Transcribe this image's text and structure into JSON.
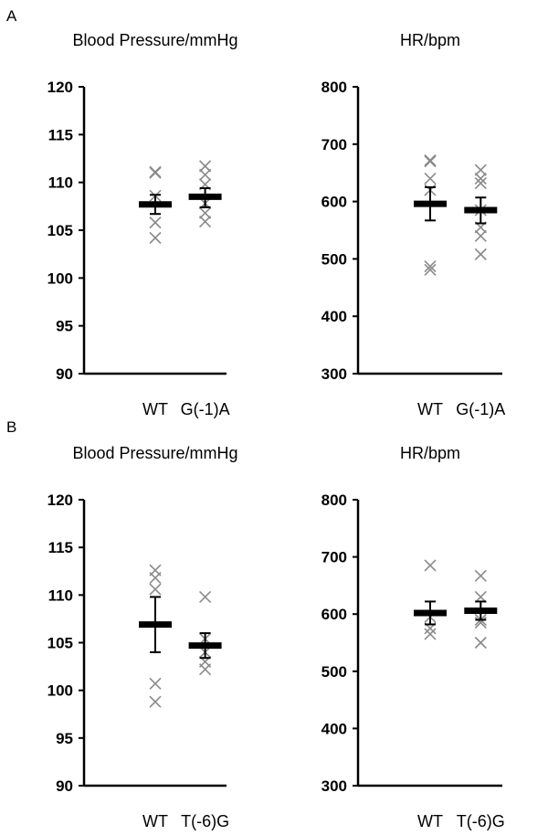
{
  "panels": {
    "a": {
      "label": "A"
    },
    "b": {
      "label": "B"
    }
  },
  "chart_data": [
    {
      "type": "scatter",
      "panel": "A",
      "title": "Blood Pressure/mmHg",
      "categories": [
        "WT",
        "G(-1)A"
      ],
      "ylim": [
        90,
        120
      ],
      "yticks": [
        90,
        95,
        100,
        105,
        110,
        115,
        120
      ],
      "series": [
        {
          "category": "WT",
          "points": [
            111.1,
            111.0,
            108.6,
            105.8,
            104.2
          ],
          "mean": 107.7,
          "error": [
            106.7,
            108.7
          ]
        },
        {
          "category": "G(-1)A",
          "points": [
            111.7,
            110.8,
            109.8,
            107.8,
            106.8,
            105.9
          ],
          "mean": 108.5,
          "error": [
            107.4,
            109.4
          ]
        }
      ]
    },
    {
      "type": "scatter",
      "panel": "A",
      "title": "HR/bpm",
      "categories": [
        "WT",
        "G(-1)A"
      ],
      "ylim": [
        300,
        800
      ],
      "yticks": [
        300,
        400,
        500,
        600,
        700,
        800
      ],
      "series": [
        {
          "category": "WT",
          "points": [
            672,
            670,
            640,
            620,
            487,
            481
          ],
          "mean": 596,
          "error": [
            567,
            625
          ]
        },
        {
          "category": "G(-1)A",
          "points": [
            655,
            640,
            632,
            585,
            555,
            540,
            508
          ],
          "mean": 585,
          "error": [
            562,
            607
          ]
        }
      ]
    },
    {
      "type": "scatter",
      "panel": "B",
      "title": "Blood Pressure/mmHg",
      "categories": [
        "WT",
        "T(-6)G"
      ],
      "ylim": [
        90,
        120
      ],
      "yticks": [
        90,
        95,
        100,
        105,
        110,
        115,
        120
      ],
      "series": [
        {
          "category": "WT",
          "points": [
            112.6,
            111.8,
            110.6,
            100.7,
            98.8
          ],
          "mean": 106.9,
          "error": [
            104.0,
            109.8
          ]
        },
        {
          "category": "T(-6)G",
          "points": [
            109.8,
            105.4,
            104.0,
            103.0,
            102.2
          ],
          "mean": 104.7,
          "error": [
            103.4,
            106.0
          ]
        }
      ]
    },
    {
      "type": "scatter",
      "panel": "B",
      "title": "HR/bpm",
      "categories": [
        "WT",
        "T(-6)G"
      ],
      "ylim": [
        300,
        800
      ],
      "yticks": [
        300,
        400,
        500,
        600,
        700,
        800
      ],
      "series": [
        {
          "category": "WT",
          "points": [
            685,
            595,
            575,
            565
          ],
          "mean": 602,
          "error": [
            582,
            622
          ]
        },
        {
          "category": "T(-6)G",
          "points": [
            667,
            630,
            590,
            585,
            550
          ],
          "mean": 606,
          "error": [
            590,
            622
          ]
        }
      ]
    }
  ]
}
